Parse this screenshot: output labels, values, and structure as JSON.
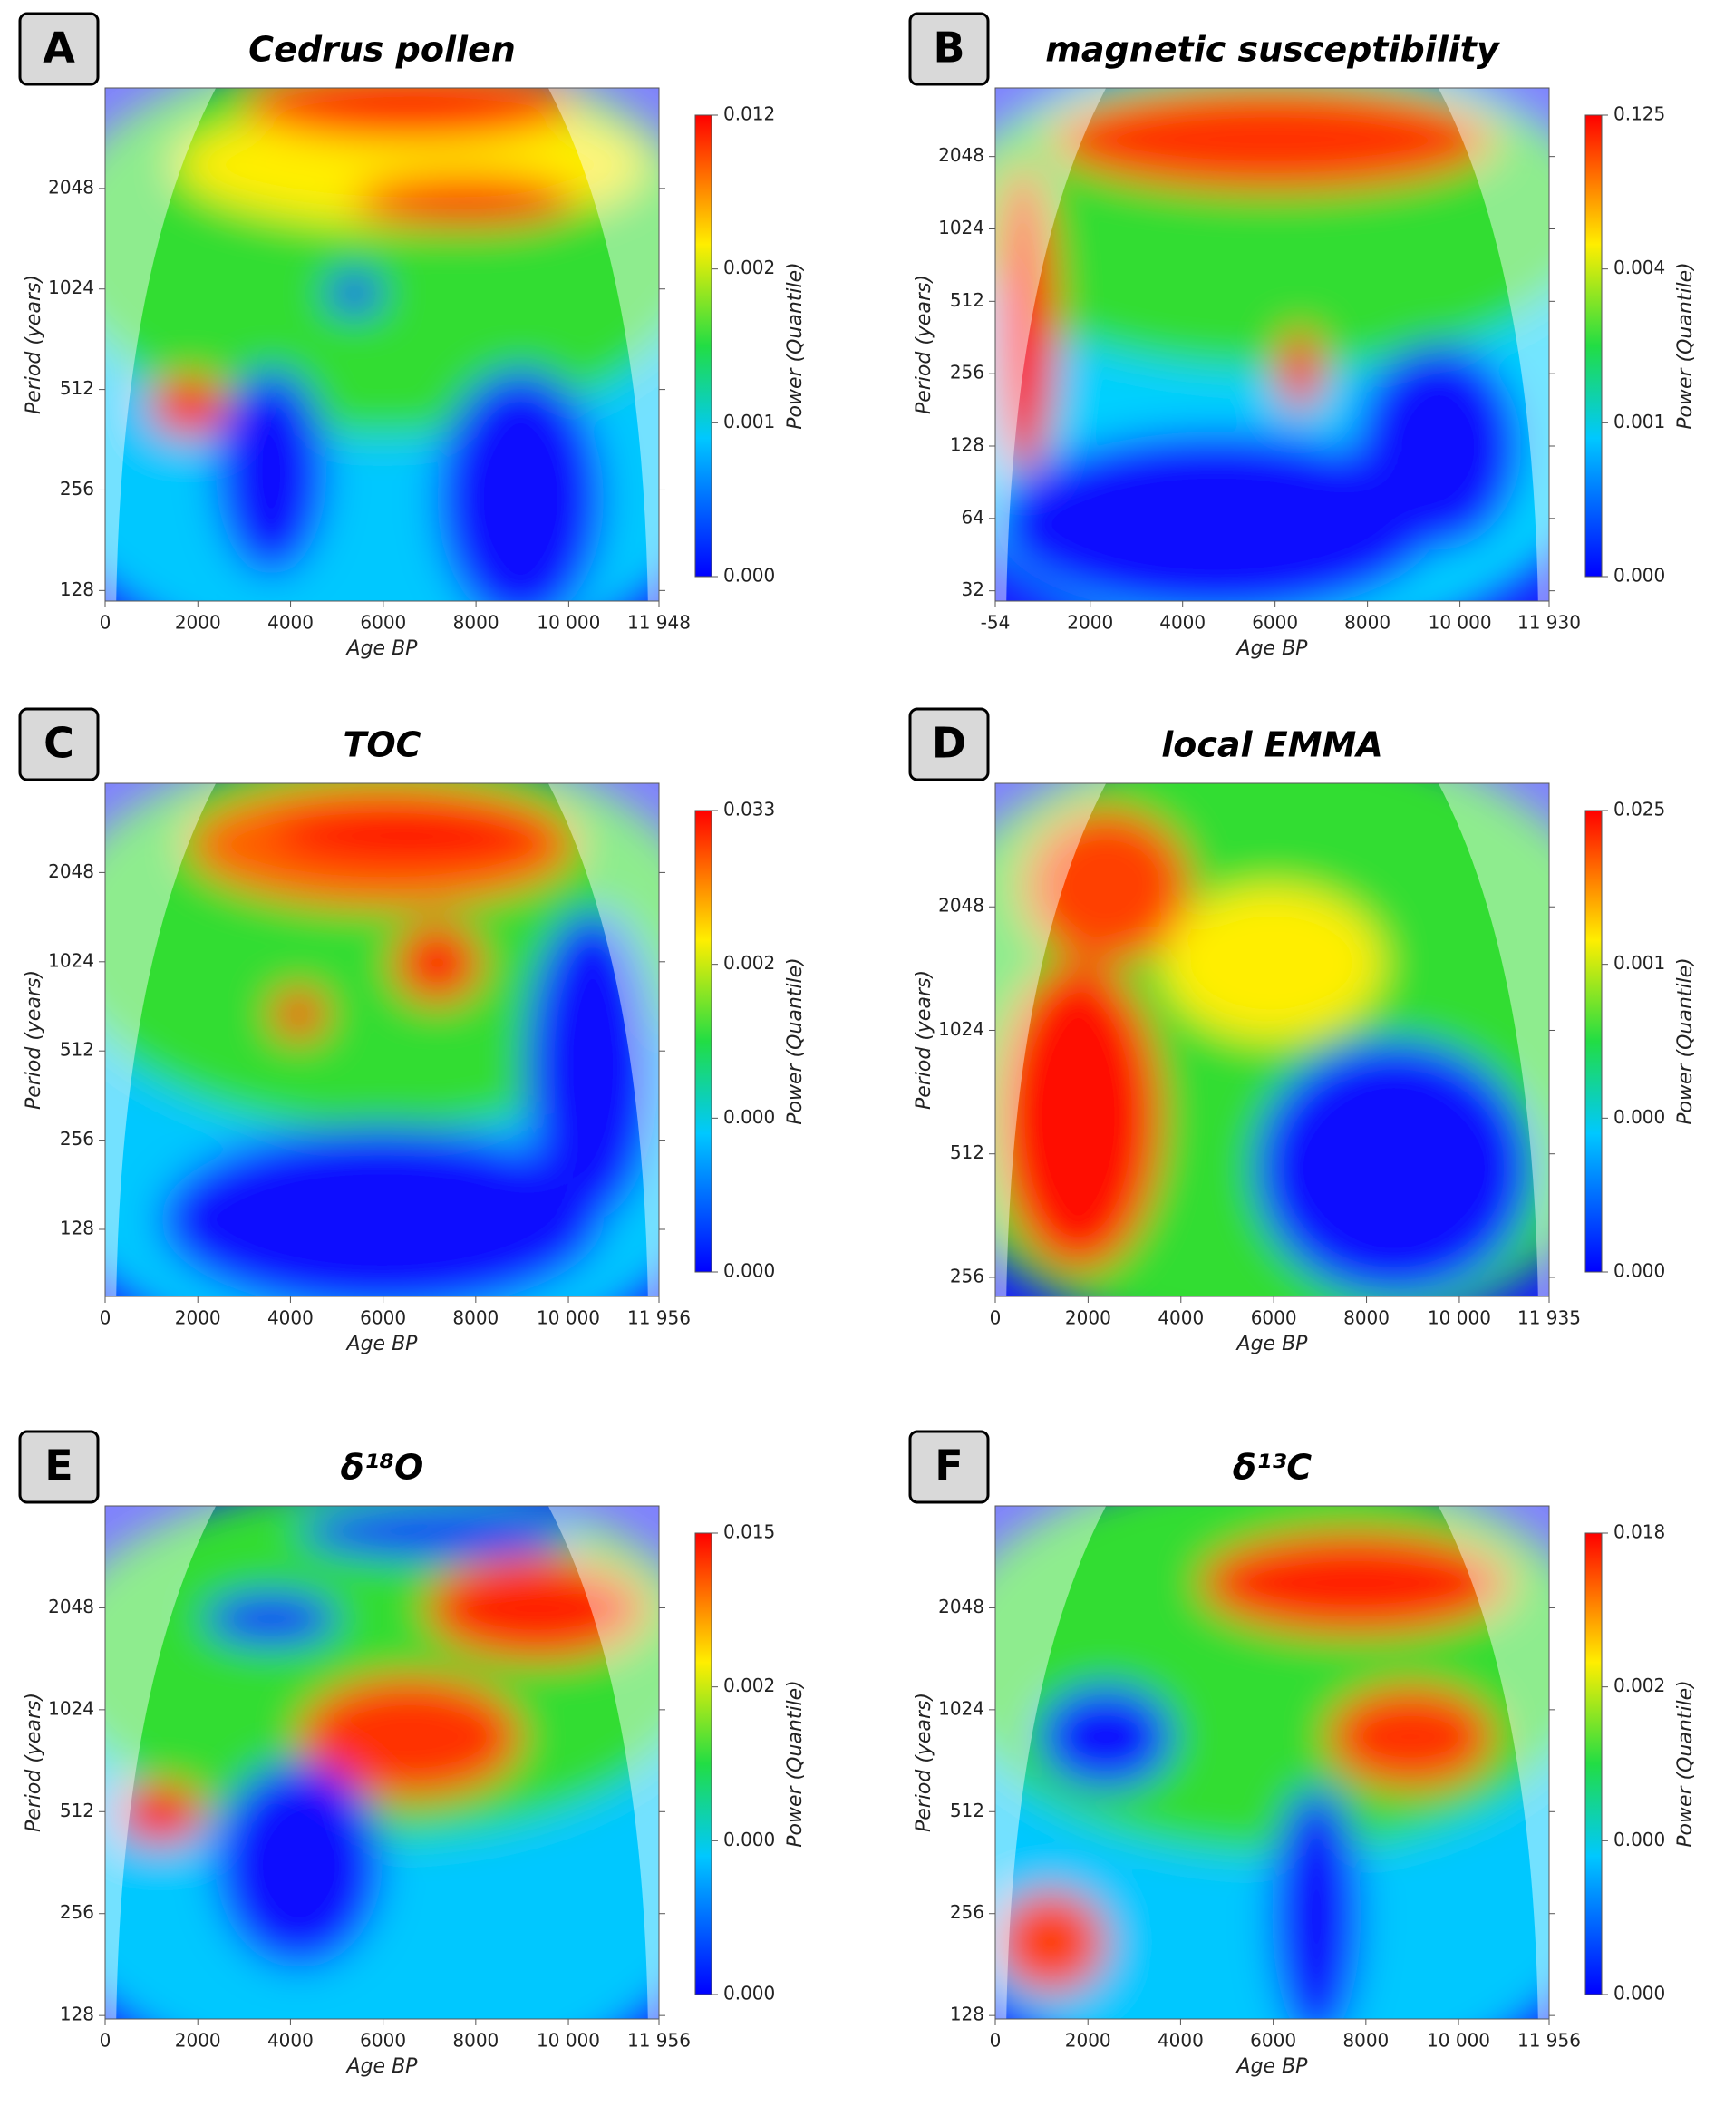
{
  "chart_data": [
    {
      "type": "heatmap",
      "panel": "A",
      "title": "Cedrus pollen",
      "xlabel": "Age BP",
      "ylabel": "Period (years)",
      "yscale": "log",
      "xlim": [
        0,
        11948
      ],
      "xticks": [
        0,
        2000,
        4000,
        6000,
        8000,
        {
          "value": 10000,
          "label": "10 000"
        },
        {
          "value": 11948,
          "label": "11 948"
        }
      ],
      "ylim": [
        119,
        4096
      ],
      "yticks": [
        128,
        256,
        512,
        1024,
        2048
      ],
      "colorbar_label": "Power (Quantile)",
      "colorbar_ticks": [
        "0.000",
        "0.001",
        "0.002",
        "0.012"
      ]
    },
    {
      "type": "heatmap",
      "panel": "B",
      "title": "magnetic susceptibility",
      "xlabel": "Age BP",
      "ylabel": "Period (years)",
      "yscale": "log",
      "xlim": [
        -54,
        11930
      ],
      "xticks": [
        -54,
        2000,
        4000,
        6000,
        8000,
        {
          "value": 10000,
          "label": "10 000"
        },
        {
          "value": 11930,
          "label": "11 930"
        }
      ],
      "ylim": [
        29,
        3950
      ],
      "yticks": [
        32,
        64,
        128,
        256,
        512,
        1024,
        2048
      ],
      "colorbar_label": "Power (Quantile)",
      "colorbar_ticks": [
        "0.000",
        "0.001",
        "0.004",
        "0.125"
      ]
    },
    {
      "type": "heatmap",
      "panel": "C",
      "title": "TOC",
      "xlabel": "Age BP",
      "ylabel": "Period (years)",
      "yscale": "log",
      "xlim": [
        0,
        11956
      ],
      "xticks": [
        0,
        2000,
        4000,
        6000,
        8000,
        {
          "value": 10000,
          "label": "10 000"
        },
        {
          "value": 11956,
          "label": "11 956"
        }
      ],
      "ylim": [
        76,
        4096
      ],
      "yticks": [
        128,
        256,
        512,
        1024,
        2048
      ],
      "colorbar_label": "Power (Quantile)",
      "colorbar_ticks": [
        "0.000",
        "0.000",
        "0.002",
        "0.033"
      ]
    },
    {
      "type": "heatmap",
      "panel": "D",
      "title": "local EMMA",
      "xlabel": "Age BP",
      "ylabel": "Period (years)",
      "yscale": "log",
      "xlim": [
        0,
        11935
      ],
      "xticks": [
        0,
        2000,
        4000,
        6000,
        8000,
        {
          "value": 10000,
          "label": "10 000"
        },
        {
          "value": 11935,
          "label": "11 935"
        }
      ],
      "ylim": [
        230,
        4096
      ],
      "yticks": [
        256,
        512,
        1024,
        2048
      ],
      "colorbar_label": "Power (Quantile)",
      "colorbar_ticks": [
        "0.000",
        "0.000",
        "0.001",
        "0.025"
      ]
    },
    {
      "type": "heatmap",
      "panel": "E",
      "title": "δ¹⁸O",
      "xlabel": "Age BP",
      "ylabel": "Period (years)",
      "yscale": "log",
      "xlim": [
        0,
        11956
      ],
      "xticks": [
        0,
        2000,
        4000,
        6000,
        8000,
        {
          "value": 10000,
          "label": "10 000"
        },
        {
          "value": 11956,
          "label": "11 956"
        }
      ],
      "ylim": [
        125,
        4096
      ],
      "yticks": [
        128,
        256,
        512,
        1024,
        2048
      ],
      "colorbar_label": "Power (Quantile)",
      "colorbar_ticks": [
        "0.000",
        "0.000",
        "0.002",
        "0.015"
      ]
    },
    {
      "type": "heatmap",
      "panel": "F",
      "title": "δ¹³C",
      "xlabel": "Age BP",
      "ylabel": "Period (years)",
      "yscale": "log",
      "xlim": [
        0,
        11956
      ],
      "xticks": [
        0,
        2000,
        4000,
        6000,
        8000,
        {
          "value": 10000,
          "label": "10 000"
        },
        {
          "value": 11956,
          "label": "11 956"
        }
      ],
      "ylim": [
        125,
        4096
      ],
      "yticks": [
        128,
        256,
        512,
        1024,
        2048
      ],
      "colorbar_label": "Power (Quantile)",
      "colorbar_ticks": [
        "0.000",
        "0.000",
        "0.002",
        "0.018"
      ]
    }
  ]
}
